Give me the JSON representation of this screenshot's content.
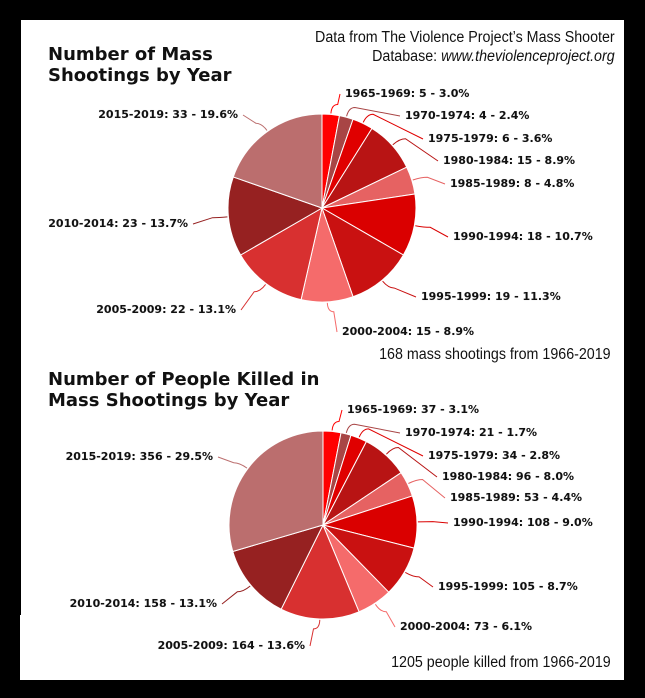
{
  "source": {
    "line1": "Data from The Violence Project’s Mass Shooter",
    "line2_prefix": "Database: ",
    "line2_url": "www.theviolenceproject.org"
  },
  "colors": {
    "1965-1969": "#FF0000",
    "1970-1974": "#A84545",
    "1975-1979": "#E00000",
    "1980-1984": "#B81414",
    "1985-1989": "#E66262",
    "1990-1994": "#DA0000",
    "1995-1999": "#C91111",
    "2000-2004": "#F56B6B",
    "2005-2009": "#D83030",
    "2010-2014": "#962121",
    "2015-2019": "#BB6E6E"
  },
  "charts": [
    {
      "title_line1": "Number of Mass",
      "title_line2": "Shootings by Year",
      "total_note": "168 mass shootings from 1966-2019",
      "labels": [
        "1965-1969: 5 - 3.0%",
        "1970-1974: 4 - 2.4%",
        "1975-1979: 6 - 3.6%",
        "1980-1984: 15 - 8.9%",
        "1985-1989: 8 - 4.8%",
        "1990-1994: 18 - 10.7%",
        "1995-1999: 19 - 11.3%",
        "2000-2004: 15 - 8.9%",
        "2005-2009: 22 - 13.1%",
        "2010-2014: 23 - 13.7%",
        "2015-2019: 33 - 19.6%"
      ]
    },
    {
      "title_line1": "Number of People Killed in",
      "title_line2": "Mass Shootings by Year",
      "total_note": "1205 people killed from 1966-2019",
      "labels": [
        "1965-1969: 37 - 3.1%",
        "1970-1974: 21 - 1.7%",
        "1975-1979: 34 - 2.8%",
        "1980-1984: 96 - 8.0%",
        "1985-1989: 53 - 4.4%",
        "1990-1994: 108 - 9.0%",
        "1995-1999: 105 - 8.7%",
        "2000-2004: 73 - 6.1%",
        "2005-2009: 164 - 13.6%",
        "2010-2014: 158 - 13.1%",
        "2015-2019: 356 - 29.5%"
      ]
    }
  ],
  "chart_data": [
    {
      "type": "pie",
      "title": "Number of Mass Shootings by Year",
      "subtitle": "168 mass shootings from 1966-2019",
      "annotation": "Data from The Violence Project’s Mass Shooter Database: www.theviolenceproject.org",
      "categories": [
        "1965-1969",
        "1970-1974",
        "1975-1979",
        "1980-1984",
        "1985-1989",
        "1990-1994",
        "1995-1999",
        "2000-2004",
        "2005-2009",
        "2010-2014",
        "2015-2019"
      ],
      "values": [
        5,
        4,
        6,
        15,
        8,
        18,
        19,
        15,
        22,
        23,
        33
      ],
      "percentages": [
        3.0,
        2.4,
        3.6,
        8.9,
        4.8,
        10.7,
        11.3,
        8.9,
        13.1,
        13.7,
        19.6
      ],
      "total": 168,
      "legend": "none (outside slice labels with leader lines)"
    },
    {
      "type": "pie",
      "title": "Number of People Killed in Mass Shootings by Year",
      "subtitle": "1205 people killed from 1966-2019",
      "categories": [
        "1965-1969",
        "1970-1974",
        "1975-1979",
        "1980-1984",
        "1985-1989",
        "1990-1994",
        "1995-1999",
        "2000-2004",
        "2005-2009",
        "2010-2014",
        "2015-2019"
      ],
      "values": [
        37,
        21,
        34,
        96,
        53,
        108,
        105,
        73,
        164,
        158,
        356
      ],
      "percentages": [
        3.1,
        1.7,
        2.8,
        8.0,
        4.4,
        9.0,
        8.7,
        6.1,
        13.6,
        13.1,
        29.5
      ],
      "total": 1205,
      "legend": "none (outside slice labels with leader lines)"
    }
  ]
}
